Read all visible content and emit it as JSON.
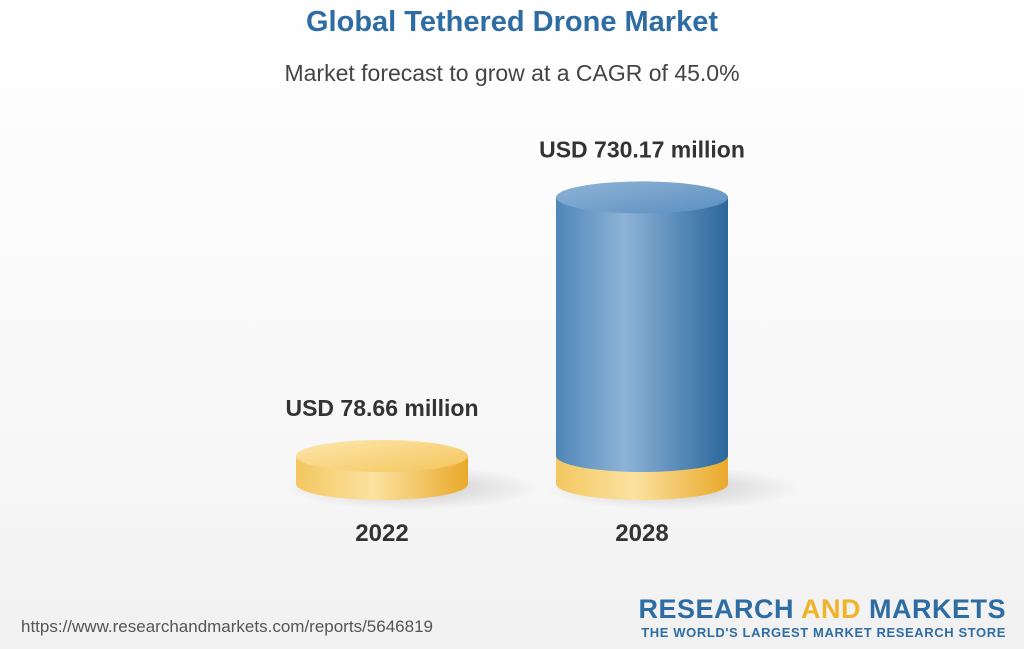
{
  "header": {
    "title": "Global Tethered Drone Market",
    "subtitle": "Market forecast to grow at a CAGR of 45.0%"
  },
  "chart_data": {
    "type": "bar",
    "style": "3d-cylinder",
    "categories": [
      "2022",
      "2028"
    ],
    "values": [
      78.66,
      730.17
    ],
    "value_labels": [
      "USD 78.66 million",
      "USD 730.17 million"
    ],
    "unit": "USD million",
    "colors": {
      "base_gold": "#f0b429",
      "column_blue": "#2e6da4"
    }
  },
  "footer": {
    "source_url": "https://www.researchandmarkets.com/reports/5646819",
    "brand": {
      "word1": "RESEARCH",
      "word2": "AND",
      "word3": "MARKETS",
      "tagline": "THE WORLD'S LARGEST MARKET RESEARCH STORE"
    }
  }
}
